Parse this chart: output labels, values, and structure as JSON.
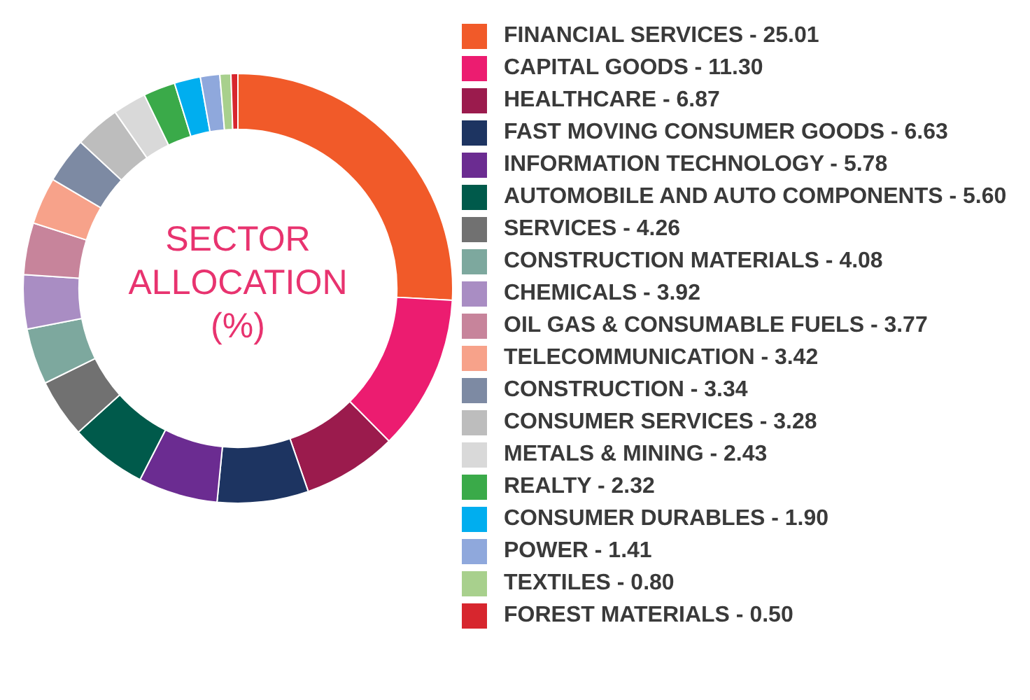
{
  "chart_data": {
    "type": "donut",
    "title": "SECTOR ALLOCATION (%)",
    "categories": [
      "FINANCIAL SERVICES",
      "CAPITAL GOODS",
      "HEALTHCARE",
      "FAST MOVING CONSUMER GOODS",
      "INFORMATION TECHNOLOGY",
      "AUTOMOBILE AND AUTO COMPONENTS",
      "SERVICES",
      "CONSTRUCTION MATERIALS",
      "CHEMICALS",
      "OIL GAS & CONSUMABLE FUELS",
      "TELECOMMUNICATION",
      "CONSTRUCTION",
      "CONSUMER SERVICES",
      "METALS & MINING",
      "REALTY",
      "CONSUMER DURABLES",
      "POWER",
      "TEXTILES",
      "FOREST MATERIALS"
    ],
    "values": [
      25.01,
      11.3,
      6.87,
      6.63,
      5.78,
      5.6,
      4.26,
      4.08,
      3.92,
      3.77,
      3.42,
      3.34,
      3.28,
      2.43,
      2.32,
      1.9,
      1.41,
      0.8,
      0.5
    ],
    "value_labels": [
      "25.01",
      "11.30",
      "6.87",
      "6.63",
      "5.78",
      "5.60",
      "4.26",
      "4.08",
      "3.92",
      "3.77",
      "3.42",
      "3.34",
      "3.28",
      "2.43",
      "2.32",
      "1.90",
      "1.41",
      "0.80",
      "0.50"
    ],
    "colors": [
      "#f15a29",
      "#ec1c70",
      "#9b1b4d",
      "#1d3461",
      "#6b2c91",
      "#005a4b",
      "#717171",
      "#7da89e",
      "#a98dc3",
      "#c7849b",
      "#f7a28a",
      "#7d8aa3",
      "#bdbdbd",
      "#d9d9d9",
      "#3aaa49",
      "#00aeef",
      "#8fa8dc",
      "#a8d08d",
      "#d7262e"
    ],
    "legend": "right"
  }
}
